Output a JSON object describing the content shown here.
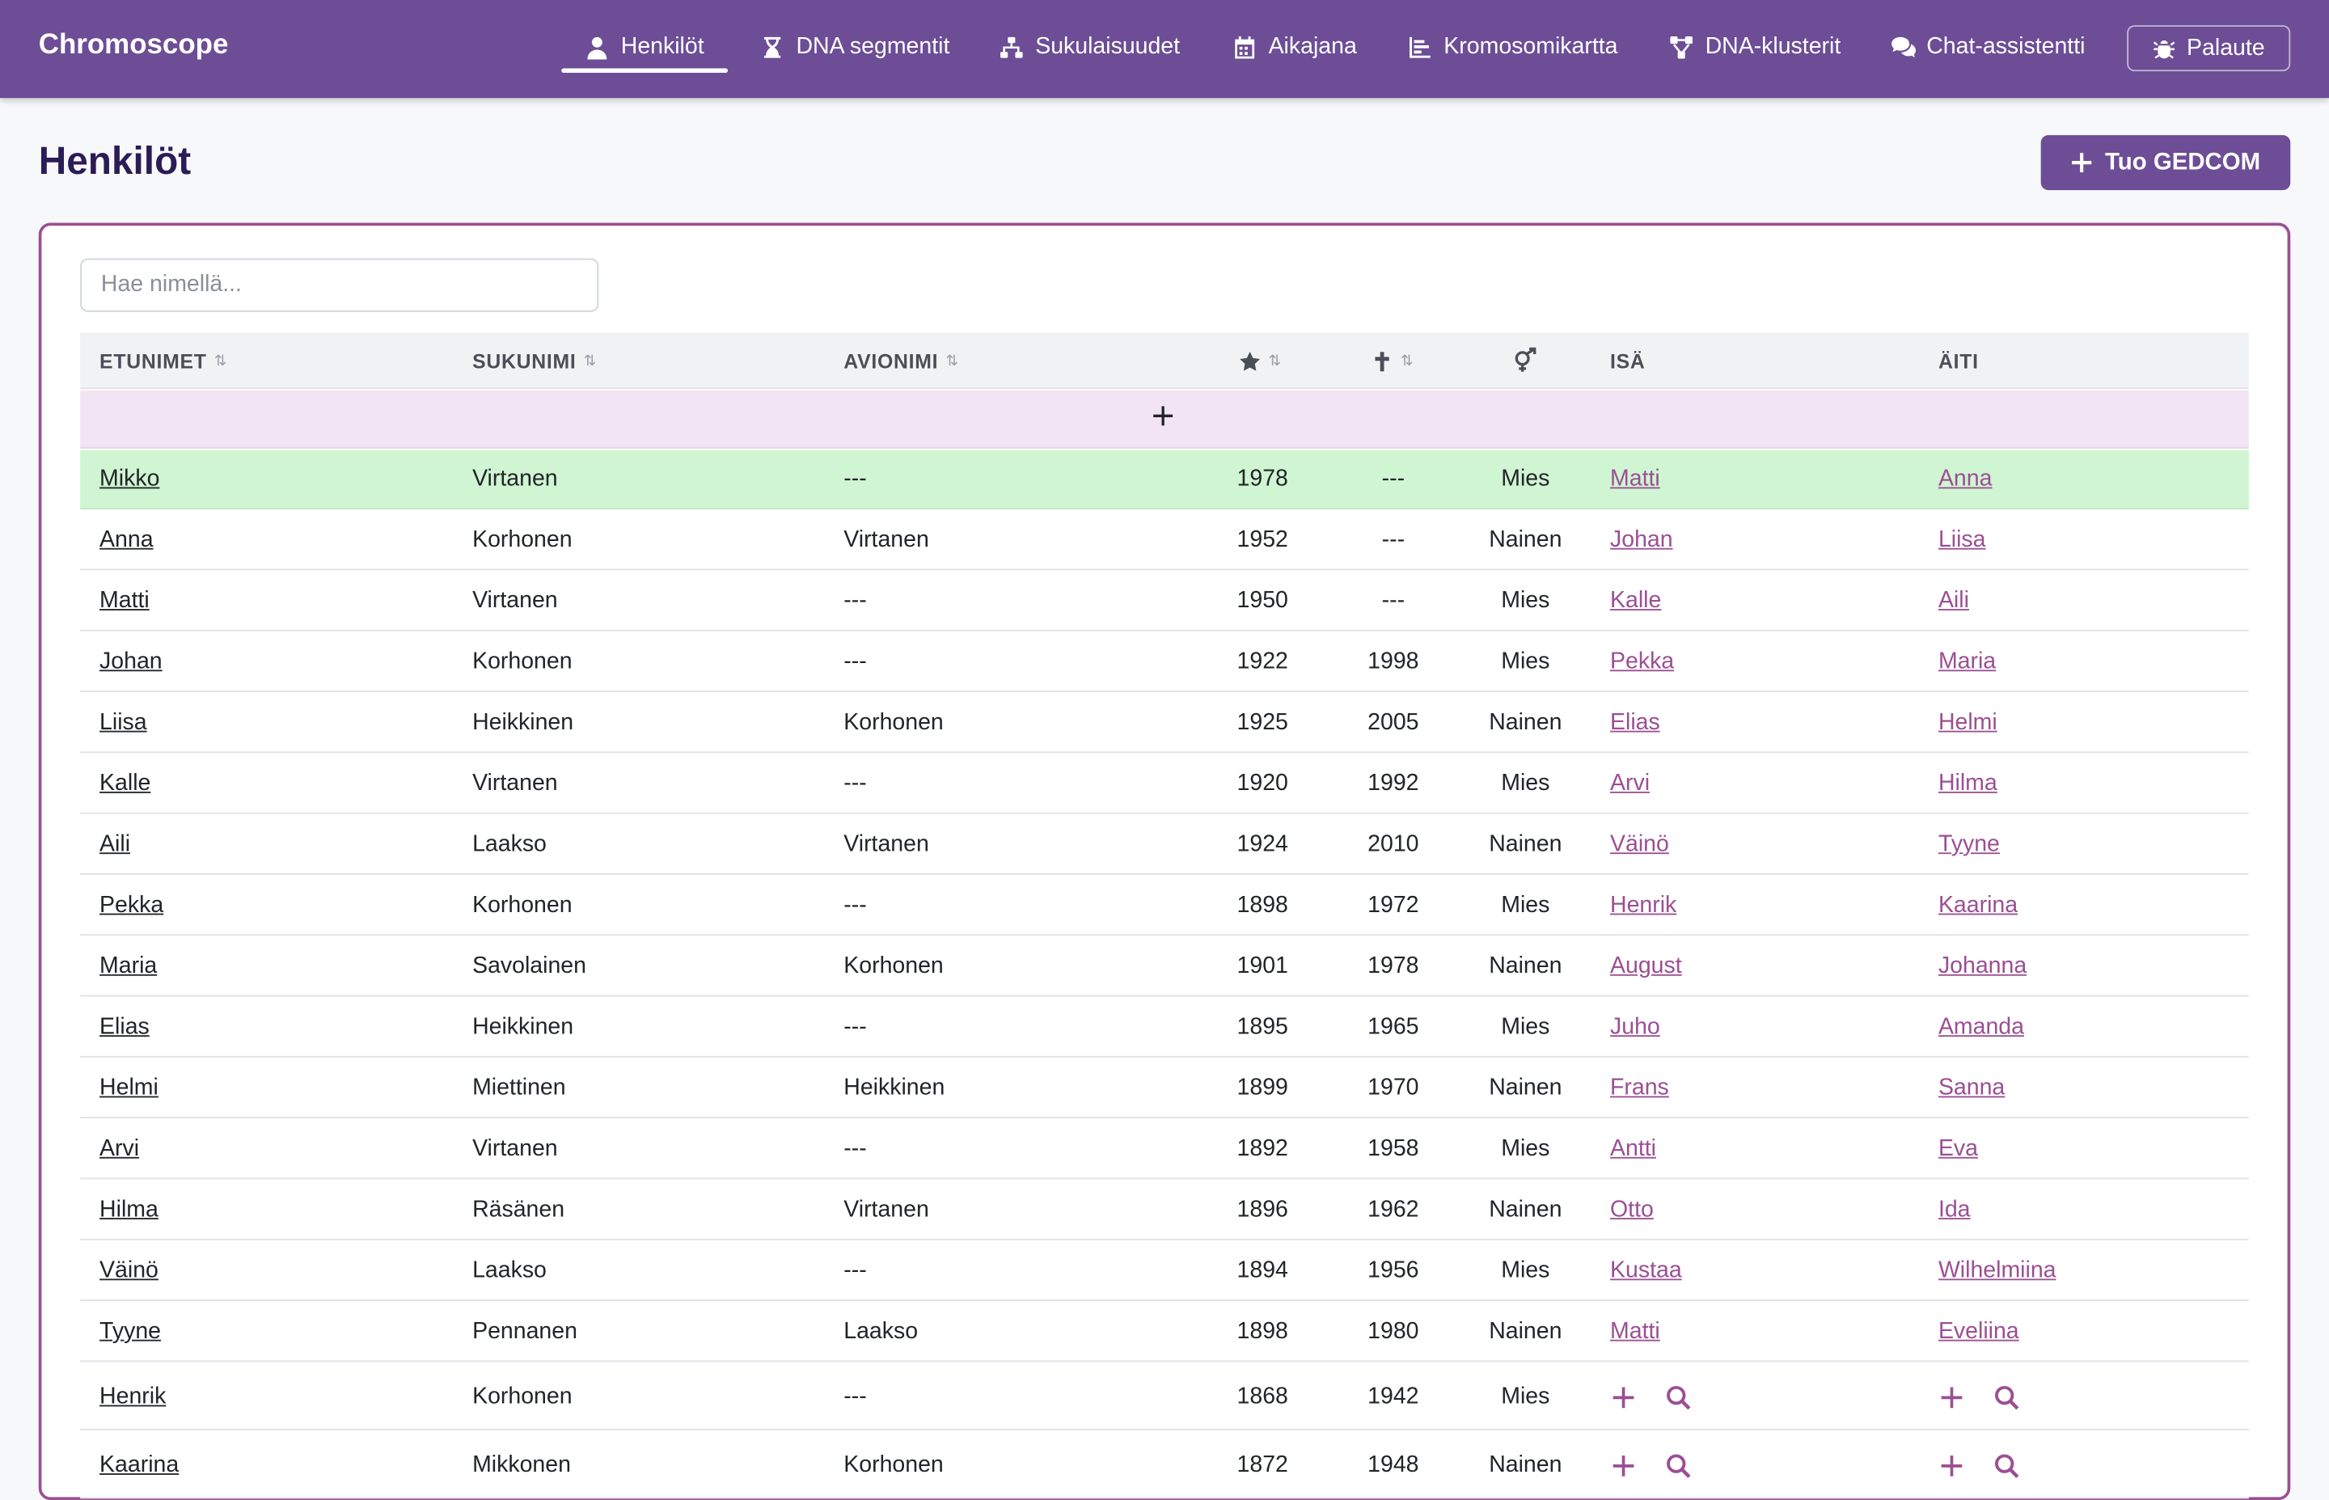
{
  "app": {
    "brand": "Chromoscope"
  },
  "nav": {
    "items": [
      {
        "label": "Henkilöt",
        "icon": "person-icon",
        "active": true
      },
      {
        "label": "DNA segmentit",
        "icon": "hourglass-icon"
      },
      {
        "label": "Sukulaisuudet",
        "icon": "sitemap-icon"
      },
      {
        "label": "Aikajana",
        "icon": "calendar-icon"
      },
      {
        "label": "Kromosomikartta",
        "icon": "bar-chart-icon"
      },
      {
        "label": "DNA-klusterit",
        "icon": "cluster-icon"
      },
      {
        "label": "Chat-assistentti",
        "icon": "chat-icon"
      }
    ],
    "feedback_label": "Palaute"
  },
  "page": {
    "title": "Henkilöt",
    "import_label": "Tuo GEDCOM"
  },
  "search": {
    "placeholder": "Hae nimellä..."
  },
  "table": {
    "headers": {
      "first": "ETUNIMET",
      "last": "SUKUNIMI",
      "married": "AVIONIMI",
      "father": "ISÄ",
      "mother": "ÄITI"
    },
    "sort_glyph": "⇅",
    "add_row_label": "+",
    "colors": {
      "highlight": "#d0f5d2",
      "add_row": "#f2e4f4",
      "accent": "#6c4d96",
      "link": "#9b4f93"
    },
    "rows": [
      {
        "first": "Mikko",
        "last": "Virtanen",
        "married": "---",
        "born": "1978",
        "died": "---",
        "sex": "Mies",
        "father": "Matti",
        "mother": "Anna",
        "highlight": true
      },
      {
        "first": "Anna",
        "last": "Korhonen",
        "married": "Virtanen",
        "born": "1952",
        "died": "---",
        "sex": "Nainen",
        "father": "Johan",
        "mother": "Liisa"
      },
      {
        "first": "Matti",
        "last": "Virtanen",
        "married": "---",
        "born": "1950",
        "died": "---",
        "sex": "Mies",
        "father": "Kalle",
        "mother": "Aili"
      },
      {
        "first": "Johan",
        "last": "Korhonen",
        "married": "---",
        "born": "1922",
        "died": "1998",
        "sex": "Mies",
        "father": "Pekka",
        "mother": "Maria"
      },
      {
        "first": "Liisa",
        "last": "Heikkinen",
        "married": "Korhonen",
        "born": "1925",
        "died": "2005",
        "sex": "Nainen",
        "father": "Elias",
        "mother": "Helmi"
      },
      {
        "first": "Kalle",
        "last": "Virtanen",
        "married": "---",
        "born": "1920",
        "died": "1992",
        "sex": "Mies",
        "father": "Arvi",
        "mother": "Hilma"
      },
      {
        "first": "Aili",
        "last": "Laakso",
        "married": "Virtanen",
        "born": "1924",
        "died": "2010",
        "sex": "Nainen",
        "father": "Väinö",
        "mother": "Tyyne"
      },
      {
        "first": "Pekka",
        "last": "Korhonen",
        "married": "---",
        "born": "1898",
        "died": "1972",
        "sex": "Mies",
        "father": "Henrik",
        "mother": "Kaarina"
      },
      {
        "first": "Maria",
        "last": "Savolainen",
        "married": "Korhonen",
        "born": "1901",
        "died": "1978",
        "sex": "Nainen",
        "father": "August",
        "mother": "Johanna"
      },
      {
        "first": "Elias",
        "last": "Heikkinen",
        "married": "---",
        "born": "1895",
        "died": "1965",
        "sex": "Mies",
        "father": "Juho",
        "mother": "Amanda"
      },
      {
        "first": "Helmi",
        "last": "Miettinen",
        "married": "Heikkinen",
        "born": "1899",
        "died": "1970",
        "sex": "Nainen",
        "father": "Frans",
        "mother": "Sanna"
      },
      {
        "first": "Arvi",
        "last": "Virtanen",
        "married": "---",
        "born": "1892",
        "died": "1958",
        "sex": "Mies",
        "father": "Antti",
        "mother": "Eva"
      },
      {
        "first": "Hilma",
        "last": "Räsänen",
        "married": "Virtanen",
        "born": "1896",
        "died": "1962",
        "sex": "Nainen",
        "father": "Otto",
        "mother": "Ida"
      },
      {
        "first": "Väinö",
        "last": "Laakso",
        "married": "---",
        "born": "1894",
        "died": "1956",
        "sex": "Mies",
        "father": "Kustaa",
        "mother": "Wilhelmiina"
      },
      {
        "first": "Tyyne",
        "last": "Pennanen",
        "married": "Laakso",
        "born": "1898",
        "died": "1980",
        "sex": "Nainen",
        "father": "Matti",
        "mother": "Eveliina"
      },
      {
        "first": "Henrik",
        "last": "Korhonen",
        "married": "---",
        "born": "1868",
        "died": "1942",
        "sex": "Mies",
        "father": null,
        "mother": null
      },
      {
        "first": "Kaarina",
        "last": "Mikkonen",
        "married": "Korhonen",
        "born": "1872",
        "died": "1948",
        "sex": "Nainen",
        "father": null,
        "mother": null
      }
    ]
  }
}
